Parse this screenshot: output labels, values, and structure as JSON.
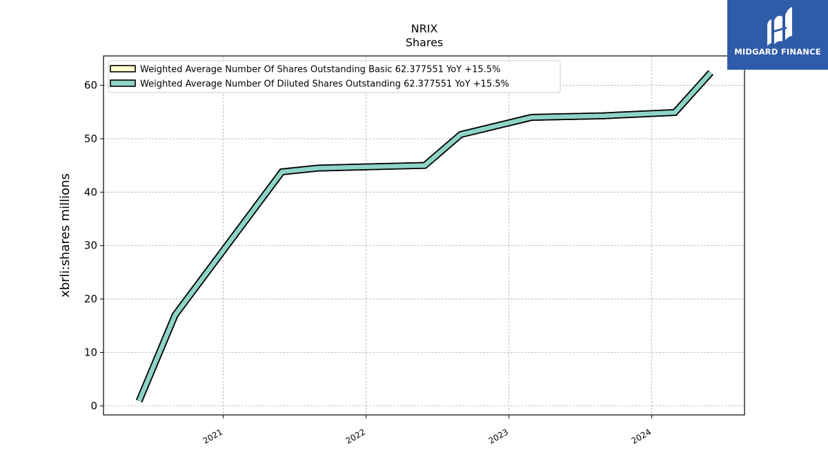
{
  "brand": {
    "name": "MIDGARD FINANCE",
    "bg_color": "#2f5ba8"
  },
  "chart_data": {
    "type": "line",
    "title": "NRIX",
    "subtitle": "Shares",
    "xlabel": "",
    "ylabel": "xbrli:shares millions",
    "xlim": [
      "2020-03-01",
      "2024-08-25"
    ],
    "ylim": [
      -1.7,
      65.5
    ],
    "x_ticks": [
      "2021",
      "2022",
      "2023",
      "2024"
    ],
    "y_ticks": [
      0,
      10,
      20,
      30,
      40,
      50,
      60
    ],
    "grid": true,
    "legend_position": "top-left",
    "series": [
      {
        "name": "Weighted Average Number Of Shares Outstanding Basic  62.377551 YoY +15.5%",
        "color": "#ffffcc",
        "x": [
          "2020-05-31",
          "2020-08-31",
          "2021-05-31",
          "2021-08-31",
          "2022-05-31",
          "2022-08-31",
          "2023-02-28",
          "2023-08-31",
          "2024-02-29",
          "2024-05-31"
        ],
        "y": [
          0.9,
          17.0,
          43.8,
          44.5,
          45.0,
          50.8,
          54.0,
          54.3,
          54.9,
          62.4
        ]
      },
      {
        "name": "Weighted Average Number Of Diluted Shares Outstanding  62.377551 YoY +15.5%",
        "color": "#8dd3c7",
        "x": [
          "2020-05-31",
          "2020-08-31",
          "2021-05-31",
          "2021-08-31",
          "2022-05-31",
          "2022-08-31",
          "2023-02-28",
          "2023-08-31",
          "2024-02-29",
          "2024-05-31"
        ],
        "y": [
          0.9,
          17.0,
          43.8,
          44.5,
          45.0,
          50.8,
          54.0,
          54.3,
          54.9,
          62.4
        ]
      }
    ]
  }
}
